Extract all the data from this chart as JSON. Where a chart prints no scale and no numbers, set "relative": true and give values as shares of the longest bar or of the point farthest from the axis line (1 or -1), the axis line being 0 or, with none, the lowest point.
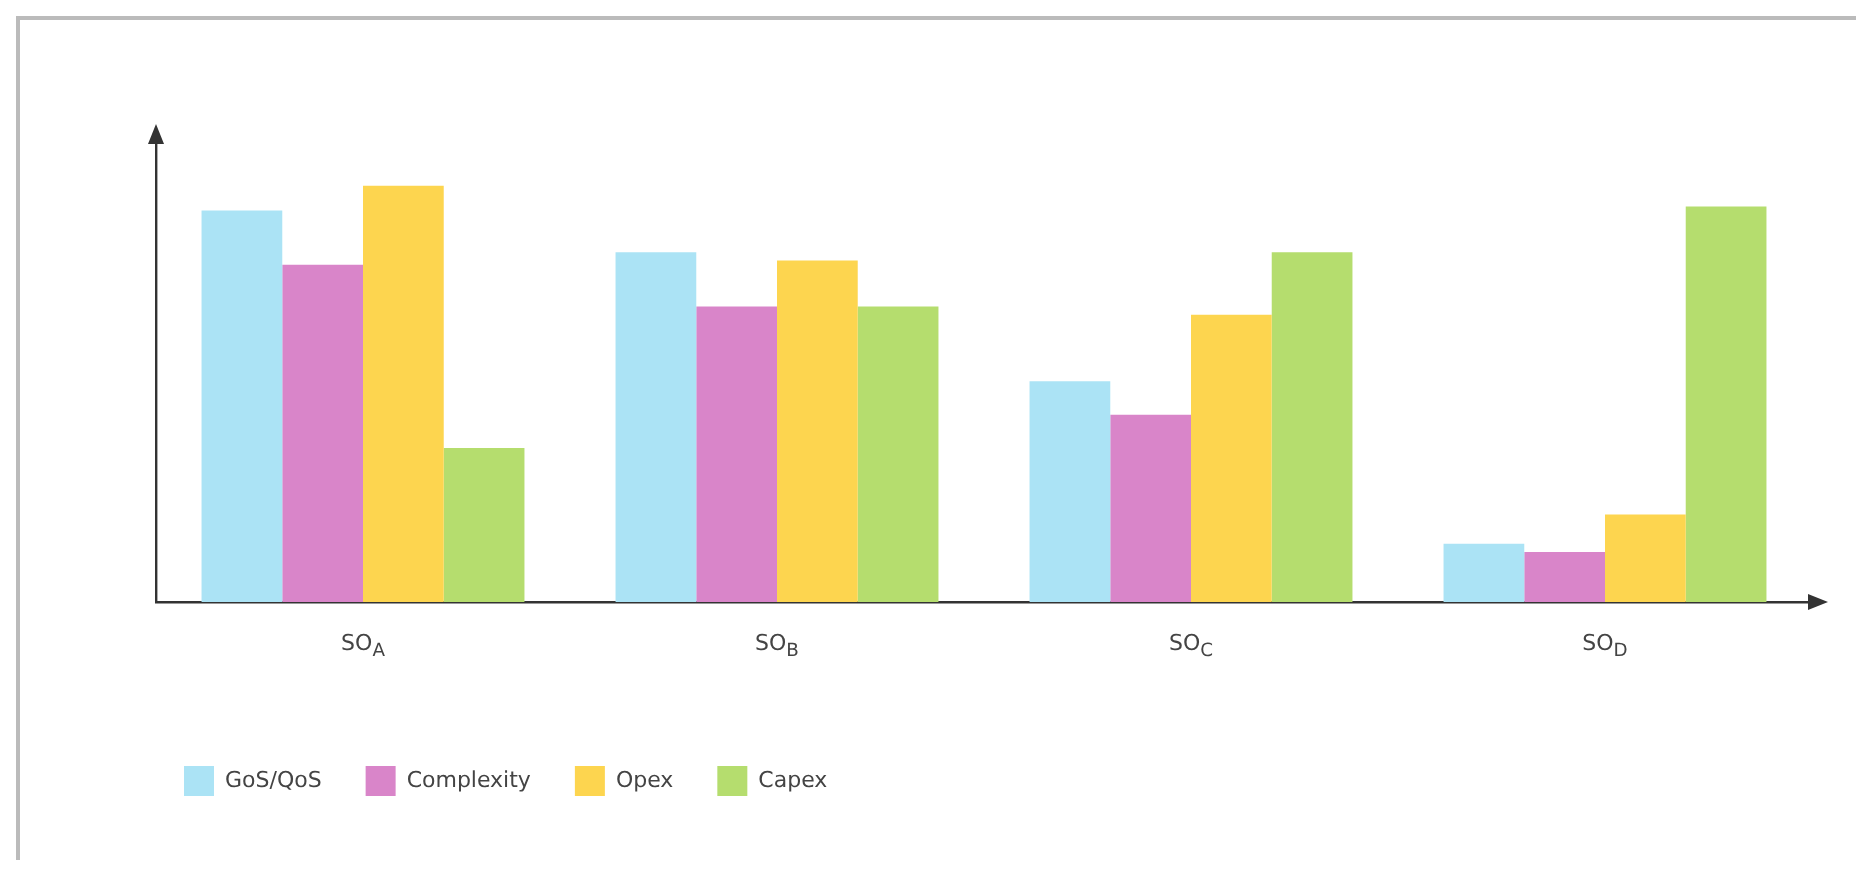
{
  "chart_data": {
    "type": "bar",
    "relative": true,
    "categories": [
      "SO$_{A}$",
      "SO$_{B}$",
      "SO$_{C}$",
      "SO$_{D}$"
    ],
    "legend": "bottom left",
    "series": [
      {
        "name": "GoS/QoS",
        "color": "#abe3f5",
        "values": [
          0.94,
          0.84,
          0.53,
          0.14
        ]
      },
      {
        "name": "Complexity",
        "color": "#d985c9",
        "values": [
          0.81,
          0.71,
          0.45,
          0.12
        ]
      },
      {
        "name": "Opex",
        "color": "#fdd54f",
        "values": [
          1,
          0.82,
          0.69,
          0.21
        ]
      },
      {
        "name": "Capex",
        "color": "#b5dd6e",
        "values": [
          0.37,
          0.71,
          0.84,
          0.95
        ]
      }
    ]
  }
}
